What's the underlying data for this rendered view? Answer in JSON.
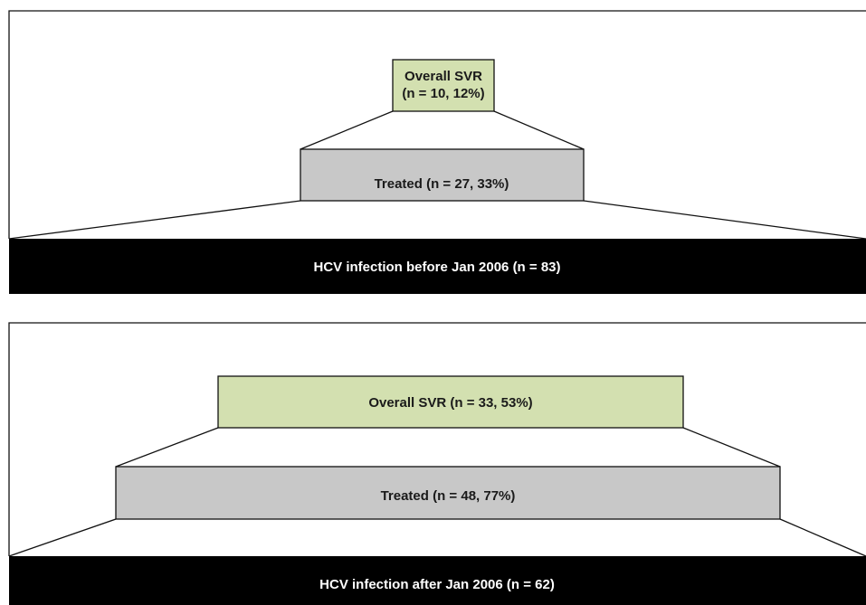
{
  "panels": [
    {
      "top": {
        "lines": [
          "Overall SVR",
          "(n = 10, 12%)"
        ]
      },
      "middle": {
        "label": "Treated (n = 27, 33%)"
      },
      "base": {
        "label": "HCV infection before Jan 2006 (n = 83)"
      }
    },
    {
      "top": {
        "lines": [
          "Overall SVR (n = 33, 53%)"
        ]
      },
      "middle": {
        "label": "Treated (n = 48, 77%)"
      },
      "base": {
        "label": "HCV infection after Jan 2006 (n = 62)"
      }
    }
  ]
}
